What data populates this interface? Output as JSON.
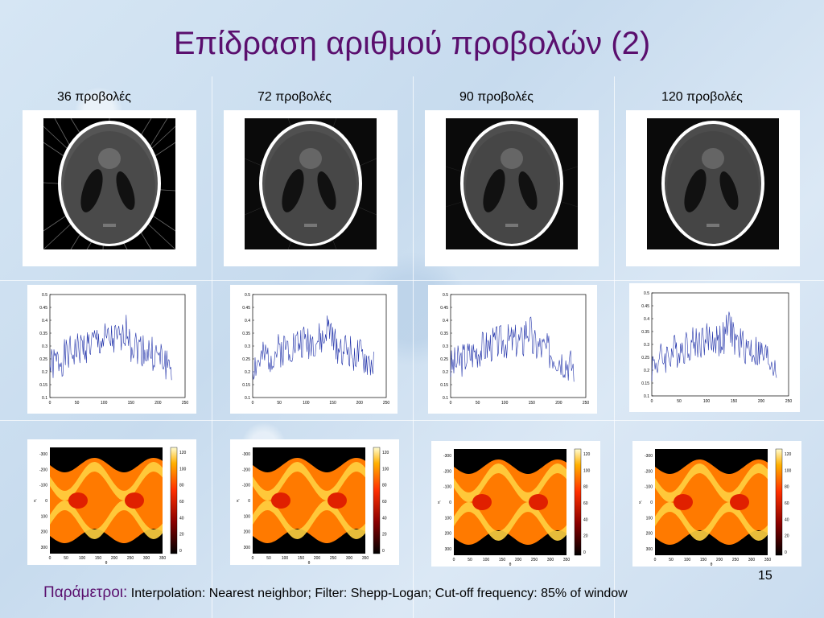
{
  "slide": {
    "title": "Επίδραση αριθμού προβολών (2)",
    "page_number": "15",
    "footer_label": "Παράμετροι:",
    "footer_text": "Interpolation: Nearest neighbor; Filter: Shepp-Logan; Cut-off frequency: 85% of window"
  },
  "columns": [
    {
      "label": "36 προβολές"
    },
    {
      "label": "72 προβολές"
    },
    {
      "label": "90 προβολές"
    },
    {
      "label": "120 προβολές"
    }
  ],
  "profile_plot": {
    "x_ticks": [
      "0",
      "50",
      "100",
      "150",
      "200",
      "250"
    ],
    "y_ticks": [
      "0.5",
      "0.45",
      "0.4",
      "0.35",
      "0.3",
      "0.25",
      "0.2",
      "0.15",
      "0.1"
    ],
    "x_range": [
      0,
      250
    ],
    "y_range": [
      0.1,
      0.5
    ]
  },
  "sinogram": {
    "y_ticks": [
      "-300",
      "-200",
      "-100",
      "0",
      "100",
      "200",
      "300"
    ],
    "x_ticks": [
      "0",
      "50",
      "100",
      "150",
      "200",
      "250",
      "300",
      "350"
    ],
    "ylabel": "x'",
    "xlabel": "θ",
    "colorbar_ticks": [
      "120",
      "100",
      "80",
      "60",
      "40",
      "20",
      "0"
    ]
  }
}
